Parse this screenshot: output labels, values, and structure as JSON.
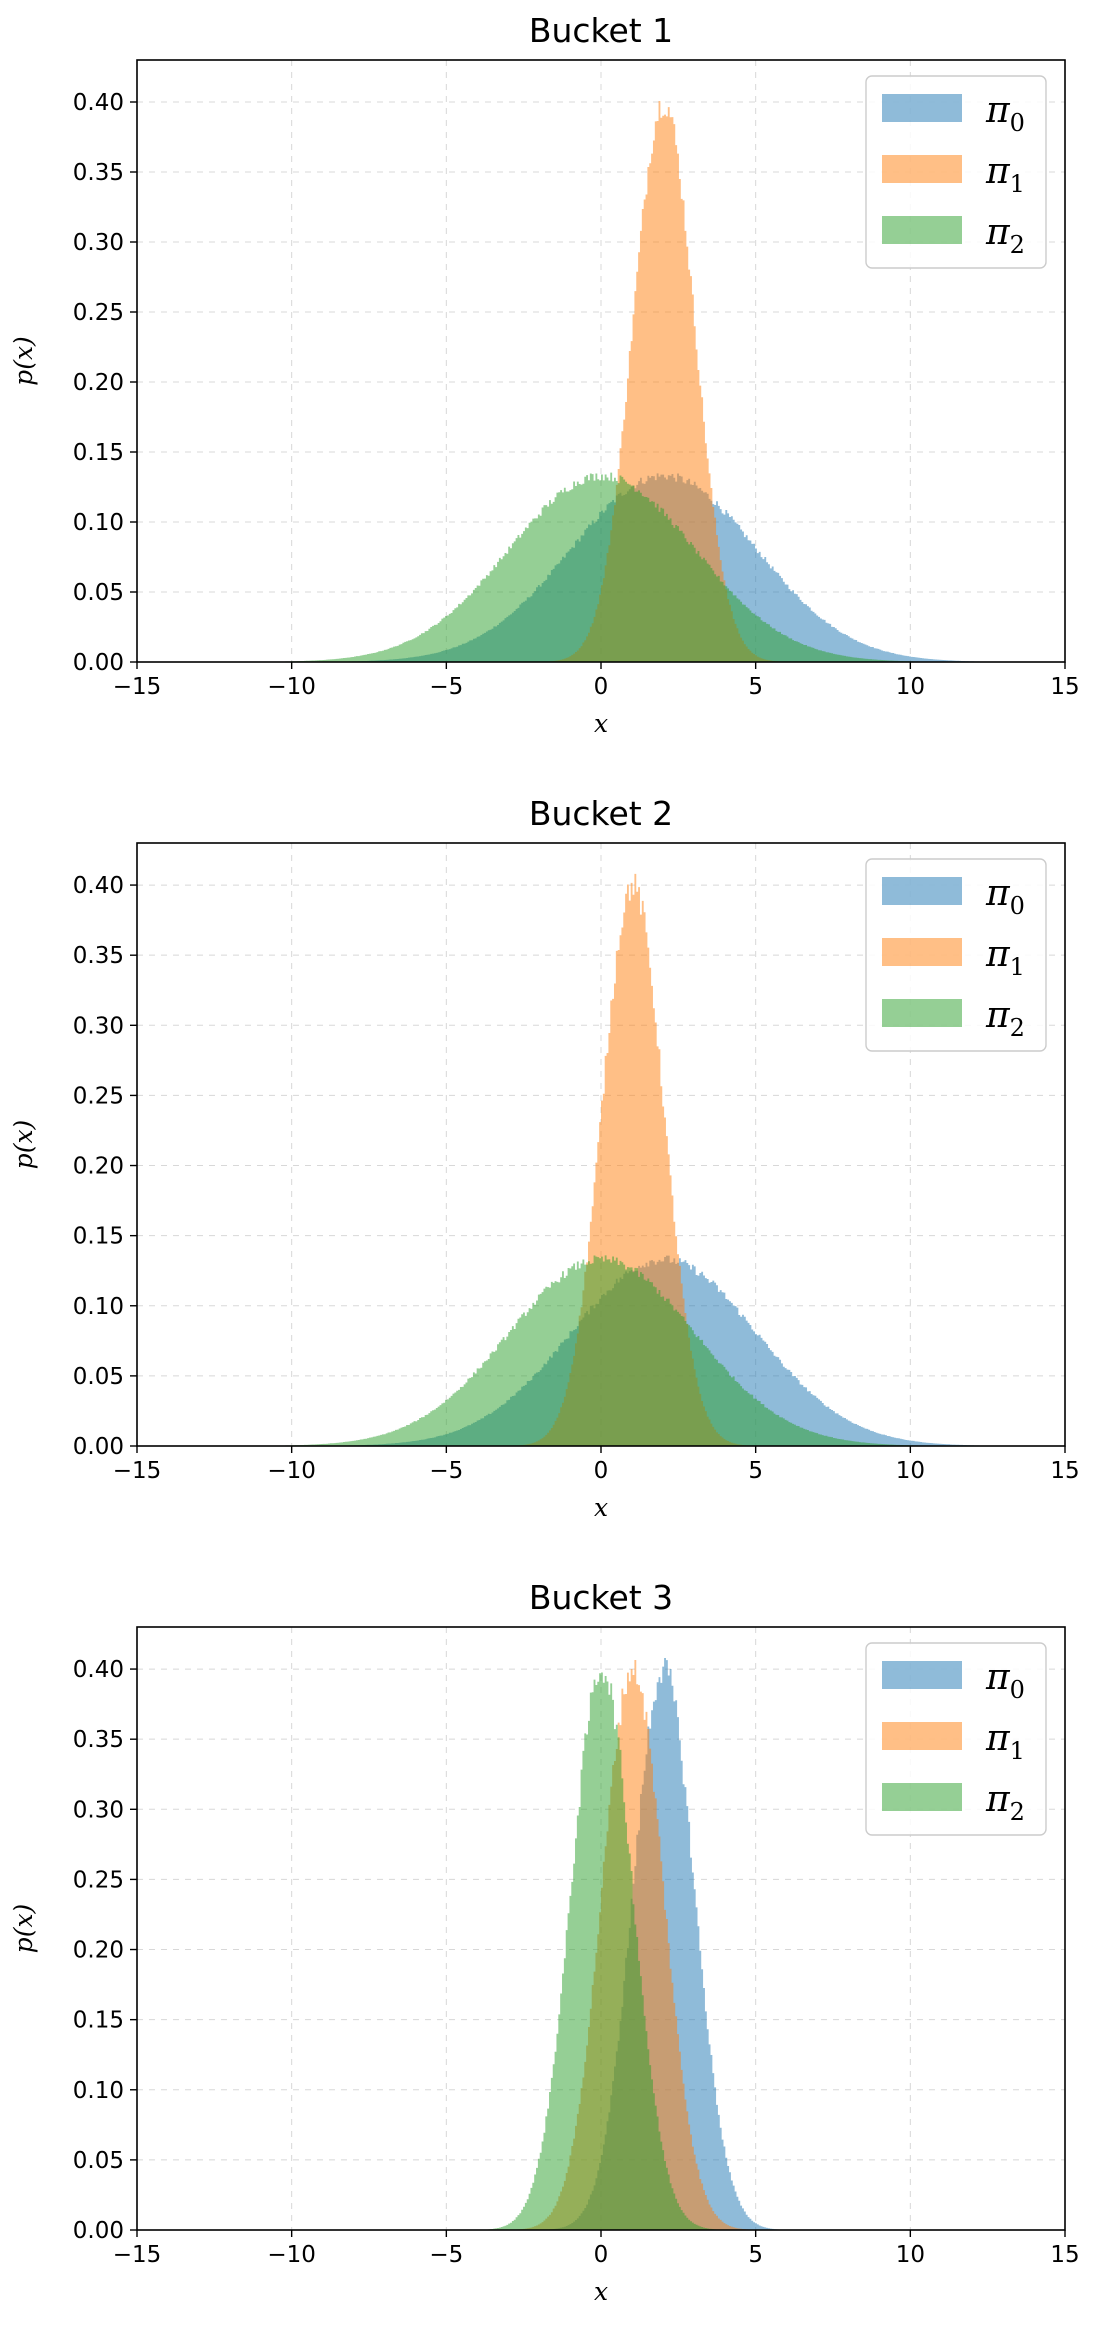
{
  "chart_data": [
    {
      "type": "area",
      "title": "Bucket 1",
      "xlabel": "x",
      "ylabel": "p(x)",
      "xlim": [
        -15,
        15
      ],
      "ylim": [
        0,
        0.43
      ],
      "x_ticks": [
        "−15",
        "−10",
        "−5",
        "0",
        "5",
        "10",
        "15"
      ],
      "y_ticks": [
        "0.00",
        "0.05",
        "0.10",
        "0.15",
        "0.20",
        "0.25",
        "0.30",
        "0.35",
        "0.40"
      ],
      "grid": true,
      "legend_position": "top-right",
      "series": [
        {
          "name": "π",
          "subscript": "0",
          "color": "#1f77b4",
          "distribution": "normal",
          "mean": 2,
          "std": 3,
          "peak": 0.133
        },
        {
          "name": "π",
          "subscript": "1",
          "color": "#ff7f0e",
          "distribution": "normal",
          "mean": 2,
          "std": 1,
          "peak": 0.4
        },
        {
          "name": "π",
          "subscript": "2",
          "color": "#2ca02c",
          "distribution": "normal",
          "mean": 0,
          "std": 3,
          "peak": 0.133
        }
      ]
    },
    {
      "type": "area",
      "title": "Bucket 2",
      "xlabel": "x",
      "ylabel": "p(x)",
      "xlim": [
        -15,
        15
      ],
      "ylim": [
        0,
        0.43
      ],
      "x_ticks": [
        "−15",
        "−10",
        "−5",
        "0",
        "5",
        "10",
        "15"
      ],
      "y_ticks": [
        "0.00",
        "0.05",
        "0.10",
        "0.15",
        "0.20",
        "0.25",
        "0.30",
        "0.35",
        "0.40"
      ],
      "grid": true,
      "legend_position": "top-right",
      "series": [
        {
          "name": "π",
          "subscript": "0",
          "color": "#1f77b4",
          "distribution": "normal",
          "mean": 2,
          "std": 3,
          "peak": 0.133
        },
        {
          "name": "π",
          "subscript": "1",
          "color": "#ff7f0e",
          "distribution": "normal",
          "mean": 1,
          "std": 1,
          "peak": 0.4
        },
        {
          "name": "π",
          "subscript": "2",
          "color": "#2ca02c",
          "distribution": "normal",
          "mean": 0,
          "std": 3,
          "peak": 0.133
        }
      ]
    },
    {
      "type": "area",
      "title": "Bucket 3",
      "xlabel": "x",
      "ylabel": "p(x)",
      "xlim": [
        -15,
        15
      ],
      "ylim": [
        0,
        0.43
      ],
      "x_ticks": [
        "−15",
        "−10",
        "−5",
        "0",
        "5",
        "10",
        "15"
      ],
      "y_ticks": [
        "0.00",
        "0.05",
        "0.10",
        "0.15",
        "0.20",
        "0.25",
        "0.30",
        "0.35",
        "0.40"
      ],
      "grid": true,
      "legend_position": "top-right",
      "series": [
        {
          "name": "π",
          "subscript": "0",
          "color": "#1f77b4",
          "distribution": "normal",
          "mean": 2,
          "std": 1,
          "peak": 0.4
        },
        {
          "name": "π",
          "subscript": "1",
          "color": "#ff7f0e",
          "distribution": "normal",
          "mean": 1,
          "std": 1,
          "peak": 0.4
        },
        {
          "name": "π",
          "subscript": "2",
          "color": "#2ca02c",
          "distribution": "normal",
          "mean": 0,
          "std": 1,
          "peak": 0.4
        }
      ]
    }
  ]
}
